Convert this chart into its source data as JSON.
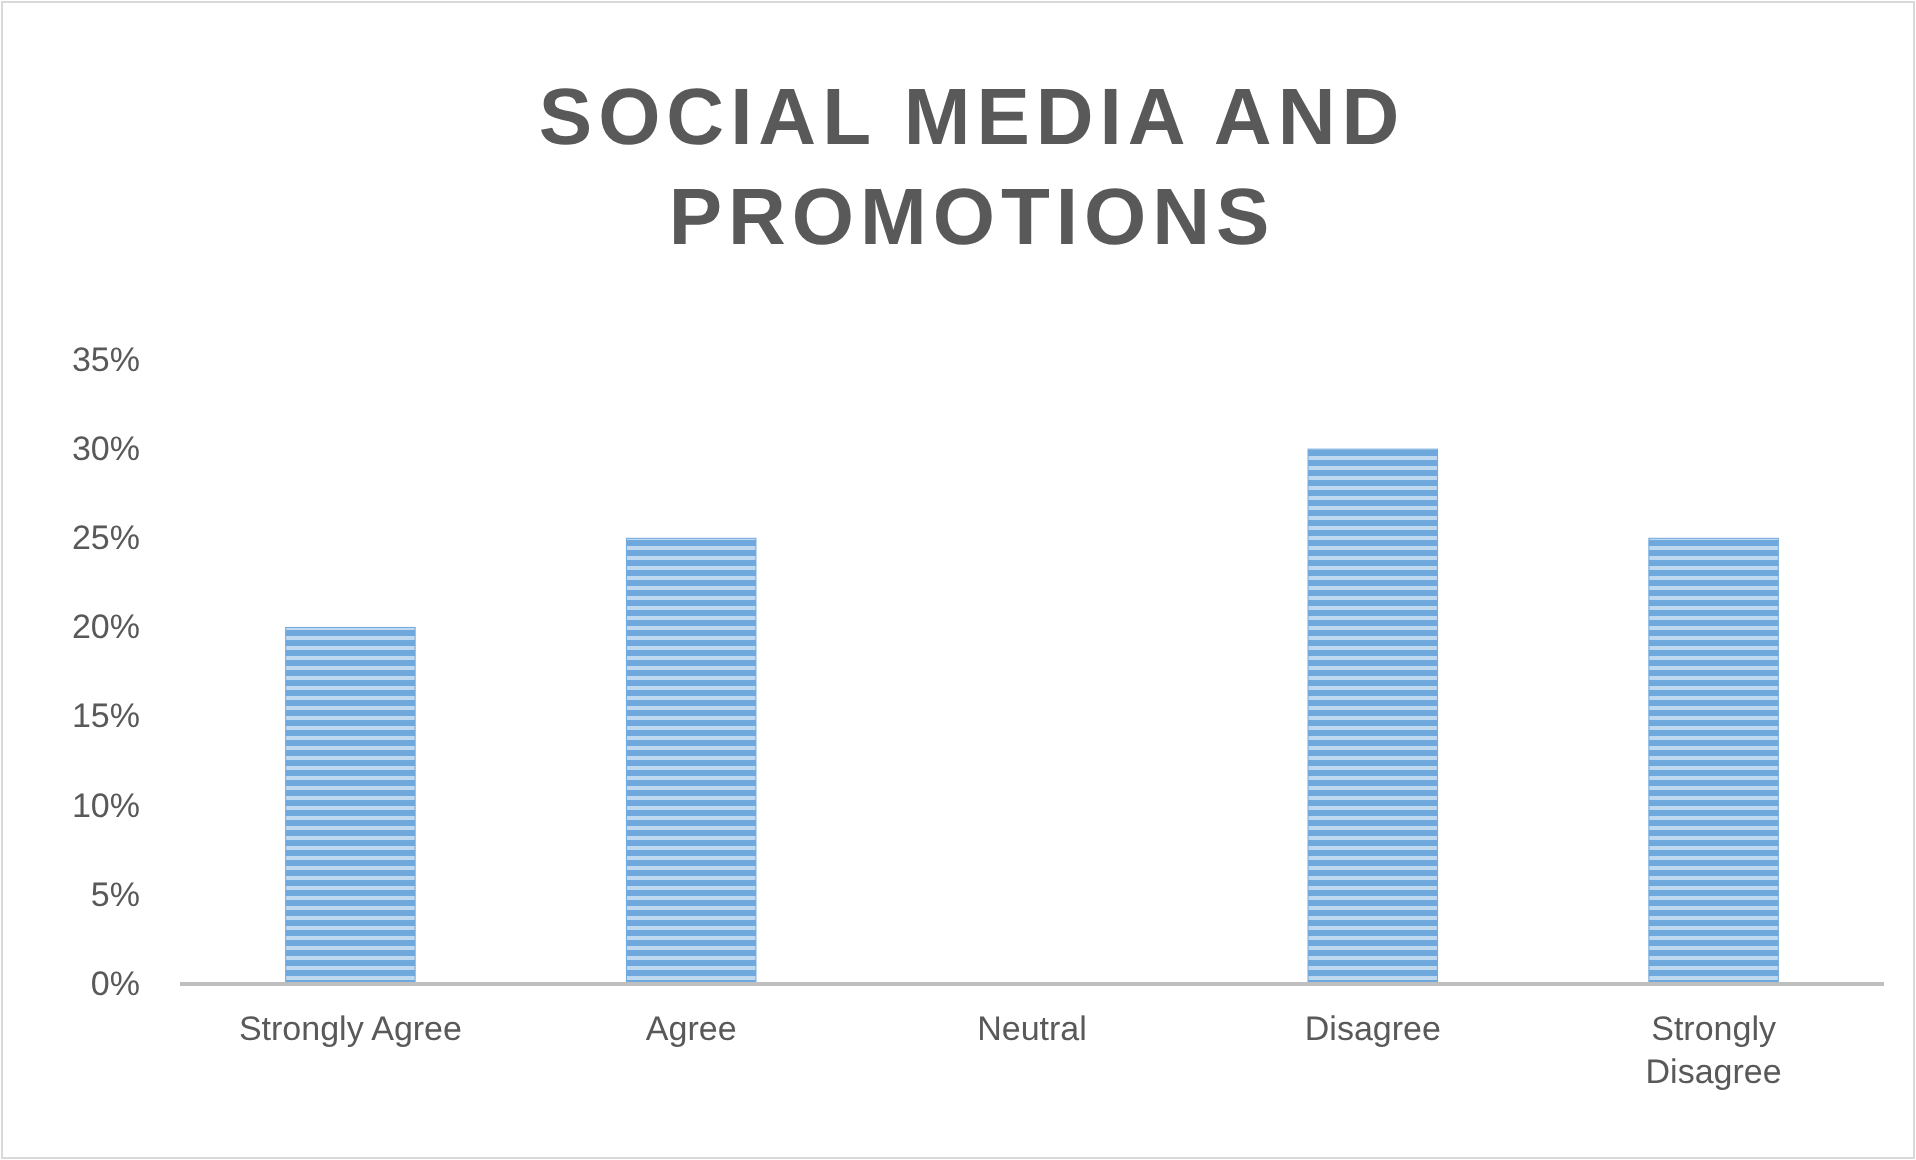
{
  "chart_data": {
    "type": "bar",
    "title": "SOCIAL MEDIA AND PROMOTIONS",
    "categories": [
      "Strongly Agree",
      "Agree",
      "Neutral",
      "Disagree",
      "Strongly Disagree"
    ],
    "values": [
      20,
      25,
      0,
      30,
      25
    ],
    "color": "#6fa8dc",
    "ylim": [
      0,
      35
    ],
    "yticks": [
      {
        "value": 0,
        "label": "0%"
      },
      {
        "value": 5,
        "label": "5%"
      },
      {
        "value": 10,
        "label": "10%"
      },
      {
        "value": 15,
        "label": "15%"
      },
      {
        "value": 20,
        "label": "20%"
      },
      {
        "value": 25,
        "label": "25%"
      },
      {
        "value": 30,
        "label": "30%"
      },
      {
        "value": 35,
        "label": "35%"
      }
    ],
    "grid": false
  }
}
